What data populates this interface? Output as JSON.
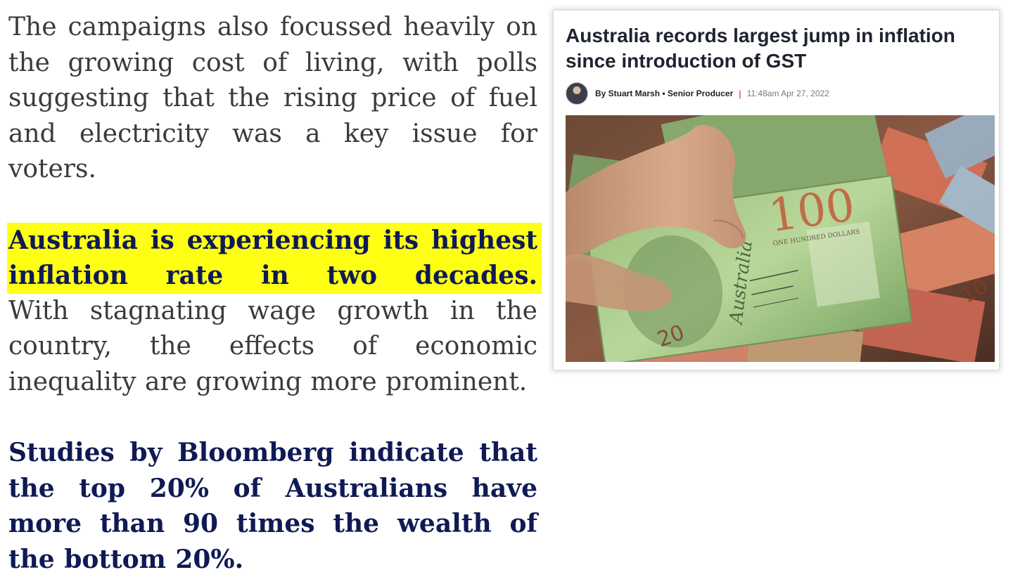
{
  "paragraphs": {
    "p1": "The campaigns also focussed heavily on the growing cost of living, with polls suggesting that the rising price of fuel and electricity was a key issue for voters.",
    "p2_highlight": "Australia is experiencing its highest inflation rate in two decades.",
    "p2_rest": "With stagnating wage growth in the country, the effects of economic inequality are growing more prominent.",
    "p3": "Studies by Bloomberg indicate that the top 20% of Australians have more than 90 times the wealth of the bottom 20%."
  },
  "article": {
    "headline": "Australia records largest jump in inflation since introduction of GST",
    "byline": {
      "author": "By Stuart Marsh • Senior Producer",
      "separator": "|",
      "timestamp": "11:48am Apr 27, 2022"
    },
    "image": {
      "banknote_value": "100",
      "banknote_words": "ONE HUNDRED DOLLARS",
      "banknote_country": "Australia",
      "small_note_value": "20",
      "corner_value": "10"
    }
  },
  "colors": {
    "body_text": "#3b3b3b",
    "navy": "#0f1a55",
    "highlight": "#ffff14"
  }
}
